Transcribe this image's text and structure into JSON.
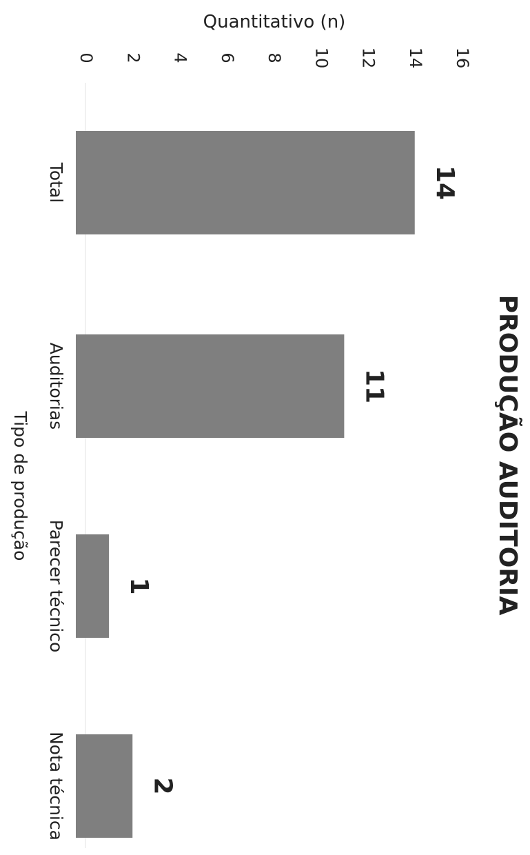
{
  "chart_data": {
    "type": "bar",
    "orientation": "rotated-90-clockwise",
    "title": "PRODUÇÃO AUDITORIA",
    "xlabel": "Tipo de produção",
    "ylabel": "Quantitativo (n)",
    "categories": [
      "Total",
      "Auditorias",
      "Parecer técnico",
      "Nota técnica"
    ],
    "values": [
      14,
      11,
      1,
      2
    ],
    "data_labels": [
      "14",
      "11",
      "1",
      "2"
    ],
    "ylim": [
      0,
      16
    ],
    "yticks": [
      "0",
      "2",
      "4",
      "6",
      "8",
      "10",
      "12",
      "14",
      "16"
    ],
    "grid": false,
    "legend": "none",
    "colors": {
      "bar": "#7f7f7f",
      "text": "#222222",
      "background": "#ffffff"
    }
  }
}
